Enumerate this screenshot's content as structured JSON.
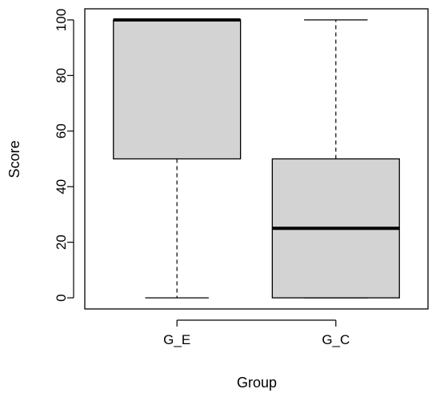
{
  "chart_data": {
    "type": "boxplot",
    "xlabel": "Group",
    "ylabel": "Score",
    "ylim": [
      -4,
      104
    ],
    "y_ticks": [
      0,
      20,
      40,
      60,
      80,
      100
    ],
    "y_tick_labels": [
      "0",
      "20",
      "40",
      "60",
      "80",
      "100"
    ],
    "categories": [
      "G_E",
      "G_C"
    ],
    "boxes": [
      {
        "group": "G_E",
        "min": 0,
        "q1": 50,
        "median": 100,
        "q3": 100,
        "max": 100
      },
      {
        "group": "G_C",
        "min": 0,
        "q1": 0,
        "median": 25,
        "q3": 50,
        "max": 100
      }
    ],
    "colors": {
      "box_fill": "#d3d3d3",
      "stroke": "#000000"
    },
    "grid": false
  }
}
